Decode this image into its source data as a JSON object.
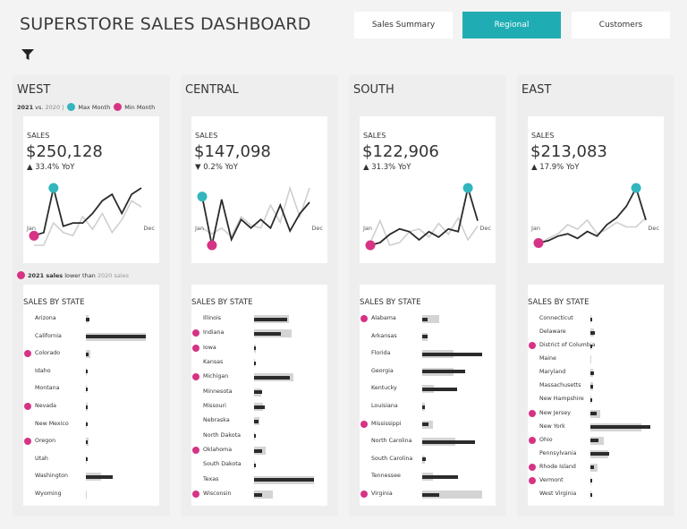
{
  "header": {
    "title": "SUPERSTORE SALES DASHBOARD",
    "filter_icon": "filter-icon",
    "nav": [
      {
        "label": "Sales Summary",
        "active": false
      },
      {
        "label": "Regional",
        "active": true
      },
      {
        "label": "Customers",
        "active": false
      }
    ]
  },
  "legend": {
    "year_current": "2021",
    "vs": "vs.",
    "year_prev": "2020",
    "sep": "|",
    "max_label": "Max Month",
    "min_label": "Min Month"
  },
  "footnote": {
    "bold": "2021 sales",
    "mid": "lower than",
    "muted": "2020 sales"
  },
  "colors": {
    "accent": "#1fadb3",
    "max_dot": "#33b5bd",
    "min_dot": "#d63384",
    "current": "#2b2b2b",
    "previous": "#d4d4d4"
  },
  "regions": [
    {
      "name": "WEST",
      "sales_label": "SALES",
      "sales_value": "$250,128",
      "yoy": "▲ 33.4% YoY",
      "axis_start": "Jan",
      "axis_end": "Dec",
      "monthly_2021": [
        8,
        9,
        23,
        11,
        12,
        12,
        15,
        19,
        21,
        15,
        21,
        23
      ],
      "monthly_2020": [
        5,
        5,
        12,
        9,
        8,
        14,
        10,
        15,
        9,
        13,
        19,
        17
      ],
      "states_title": "SALES BY STATE",
      "states": [
        {
          "name": "Arizona",
          "cur": 6,
          "prev": 4,
          "lower": false
        },
        {
          "name": "California",
          "cur": 100,
          "prev": 100,
          "lower": false
        },
        {
          "name": "Colorado",
          "cur": 4,
          "prev": 7,
          "lower": true
        },
        {
          "name": "Idaho",
          "cur": 1,
          "prev": 1.5,
          "lower": false
        },
        {
          "name": "Montana",
          "cur": 2,
          "prev": 1,
          "lower": false
        },
        {
          "name": "Nevada",
          "cur": 2,
          "prev": 3,
          "lower": true
        },
        {
          "name": "New Mexico",
          "cur": 1,
          "prev": 2,
          "lower": false
        },
        {
          "name": "Oregon",
          "cur": 2,
          "prev": 4,
          "lower": true
        },
        {
          "name": "Utah",
          "cur": 1,
          "prev": 2,
          "lower": false
        },
        {
          "name": "Washington",
          "cur": 45,
          "prev": 25,
          "lower": false
        },
        {
          "name": "Wyoming",
          "cur": 0,
          "prev": 0.5,
          "lower": false
        }
      ]
    },
    {
      "name": "CENTRAL",
      "sales_label": "SALES",
      "sales_value": "$147,098",
      "yoy": "▼ 0.2% YoY",
      "axis_start": "Jan",
      "axis_end": "Dec",
      "monthly_2021": [
        21,
        4,
        20,
        6,
        13,
        10,
        13,
        10,
        18,
        9,
        15,
        19
      ],
      "monthly_2020": [
        10,
        8,
        10,
        7,
        14,
        11,
        10,
        18,
        12,
        24,
        14,
        24
      ],
      "states_title": "SALES BY STATE",
      "states": [
        {
          "name": "Illinois",
          "cur": 55,
          "prev": 58,
          "lower": false
        },
        {
          "name": "Indiana",
          "cur": 45,
          "prev": 62,
          "lower": true
        },
        {
          "name": "Iowa",
          "cur": 2,
          "prev": 3,
          "lower": true
        },
        {
          "name": "Kansas",
          "cur": 2,
          "prev": 2,
          "lower": false
        },
        {
          "name": "Michigan",
          "cur": 60,
          "prev": 66,
          "lower": true
        },
        {
          "name": "Minnesota",
          "cur": 14,
          "prev": 12,
          "lower": false
        },
        {
          "name": "Missouri",
          "cur": 18,
          "prev": 15,
          "lower": false
        },
        {
          "name": "Nebraska",
          "cur": 7,
          "prev": 9,
          "lower": false
        },
        {
          "name": "North Dakota",
          "cur": 2,
          "prev": 1.5,
          "lower": false
        },
        {
          "name": "Oklahoma",
          "cur": 14,
          "prev": 20,
          "lower": true
        },
        {
          "name": "South Dakota",
          "cur": 3,
          "prev": 2,
          "lower": false
        },
        {
          "name": "Texas",
          "cur": 100,
          "prev": 100,
          "lower": false
        },
        {
          "name": "Wisconsin",
          "cur": 14,
          "prev": 32,
          "lower": true
        }
      ]
    },
    {
      "name": "SOUTH",
      "sales_label": "SALES",
      "sales_value": "$122,906",
      "yoy": "▲ 31.3% YoY",
      "axis_start": "Jan",
      "axis_end": "Dec",
      "monthly_2021": [
        5,
        6,
        9,
        11,
        10,
        7,
        10,
        8,
        11,
        10,
        26,
        14
      ],
      "monthly_2020": [
        6,
        14,
        5,
        6,
        10,
        11,
        8,
        13,
        9,
        15,
        7,
        12
      ],
      "states_title": "SALES BY STATE",
      "states": [
        {
          "name": "Alabama",
          "cur": 9,
          "prev": 28,
          "lower": true
        },
        {
          "name": "Arkansas",
          "cur": 9,
          "prev": 9,
          "lower": false
        },
        {
          "name": "Florida",
          "cur": 100,
          "prev": 52,
          "lower": false
        },
        {
          "name": "Georgia",
          "cur": 72,
          "prev": 52,
          "lower": false
        },
        {
          "name": "Kentucky",
          "cur": 58,
          "prev": 20,
          "lower": false
        },
        {
          "name": "Louisiana",
          "cur": 4,
          "prev": 5,
          "lower": false
        },
        {
          "name": "Mississippi",
          "cur": 11,
          "prev": 18,
          "lower": true
        },
        {
          "name": "North Carolina",
          "cur": 88,
          "prev": 55,
          "lower": false
        },
        {
          "name": "South Carolina",
          "cur": 6,
          "prev": 4,
          "lower": false
        },
        {
          "name": "Tennessee",
          "cur": 60,
          "prev": 18,
          "lower": false
        },
        {
          "name": "Virginia",
          "cur": 28,
          "prev": 100,
          "lower": true
        }
      ]
    },
    {
      "name": "EAST",
      "sales_label": "SALES",
      "sales_value": "$213,083",
      "yoy": "▲ 17.9% YoY",
      "axis_start": "Jan",
      "axis_end": "Dec",
      "monthly_2021": [
        6,
        7,
        9,
        10,
        8,
        11,
        9,
        14,
        17,
        22,
        30,
        16
      ],
      "monthly_2020": [
        5,
        8,
        10,
        14,
        12,
        16,
        10,
        12,
        15,
        13,
        13,
        17
      ],
      "states_title": "SALES BY STATE",
      "states": [
        {
          "name": "Connecticut",
          "cur": 3,
          "prev": 2,
          "lower": false
        },
        {
          "name": "Delaware",
          "cur": 8,
          "prev": 6,
          "lower": false
        },
        {
          "name": "District of Columbia",
          "cur": 1,
          "prev": 2,
          "lower": true
        },
        {
          "name": "Maine",
          "cur": 0,
          "prev": 1,
          "lower": false
        },
        {
          "name": "Maryland",
          "cur": 6,
          "prev": 5,
          "lower": false
        },
        {
          "name": "Massachusetts",
          "cur": 5,
          "prev": 4,
          "lower": false
        },
        {
          "name": "New Hampshire",
          "cur": 2,
          "prev": 1,
          "lower": false
        },
        {
          "name": "New Jersey",
          "cur": 10,
          "prev": 16,
          "lower": true
        },
        {
          "name": "New York",
          "cur": 100,
          "prev": 85,
          "lower": false
        },
        {
          "name": "Ohio",
          "cur": 14,
          "prev": 22,
          "lower": true
        },
        {
          "name": "Pennsylvania",
          "cur": 32,
          "prev": 30,
          "lower": false
        },
        {
          "name": "Rhode Island",
          "cur": 6,
          "prev": 12,
          "lower": true
        },
        {
          "name": "Vermont",
          "cur": 1,
          "prev": 2,
          "lower": true
        },
        {
          "name": "West Virginia",
          "cur": 2,
          "prev": 1,
          "lower": false
        }
      ]
    }
  ]
}
